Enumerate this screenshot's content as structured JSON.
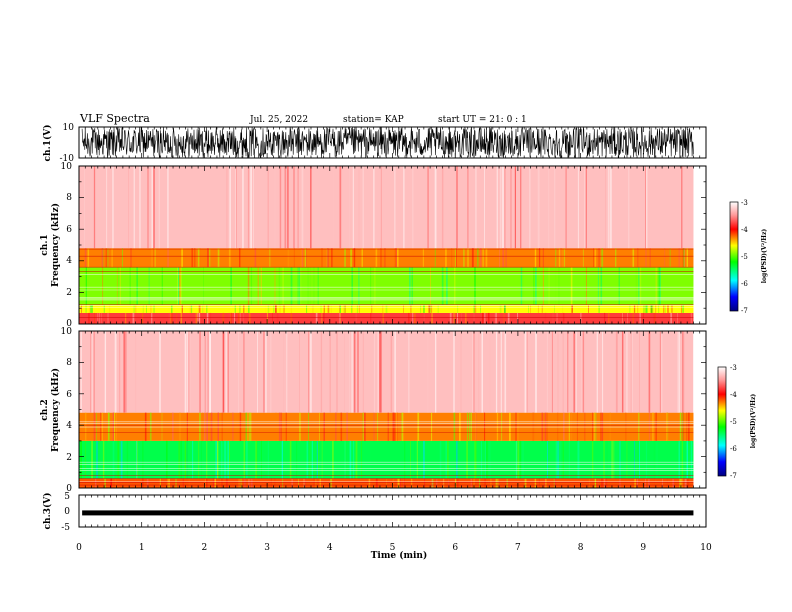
{
  "header": {
    "title": "VLF Spectra",
    "date": "Jul. 25, 2022",
    "station": "station= KAP",
    "start": "start  UT =   21: 0  : 1"
  },
  "colors": {
    "frame": "#000000",
    "spectrogram_low": "#ffffff",
    "spectrogram_mid": "#ff0000",
    "spectrogram_high": "#00ff00"
  },
  "chart_data": [
    {
      "type": "line",
      "ylabel": "ch.1(V)",
      "ylim": [
        -10,
        10
      ],
      "yticks": [
        "10",
        "-10"
      ],
      "xlim": [
        0,
        10
      ],
      "description_series": "broadband noise, approx uniform between -10 and 10"
    },
    {
      "type": "heatmap",
      "ylabel_line1": "ch.1",
      "ylabel_line2": "Frequency (kHz)",
      "ylim": [
        0,
        10
      ],
      "yticks": [
        "0",
        "2",
        "4",
        "6",
        "8",
        "10"
      ],
      "xlim": [
        0,
        9.8
      ],
      "colorbar": {
        "ticks": [
          "-3",
          "-4",
          "-5",
          "-6",
          "-7"
        ],
        "range": [
          -7,
          -3
        ],
        "label": "log(PSD)(V²/Hz)"
      },
      "bands": [
        {
          "f_lo": 0,
          "f_hi": 0.7,
          "level": -3.8
        },
        {
          "f_lo": 0.7,
          "f_hi": 1.2,
          "level": -4.6
        },
        {
          "f_lo": 1.2,
          "f_hi": 3.6,
          "level": -4.9
        },
        {
          "f_lo": 3.6,
          "f_hi": 4.8,
          "level": -4.3
        },
        {
          "f_lo": 4.8,
          "f_hi": 10,
          "level": -3.3
        }
      ]
    },
    {
      "type": "heatmap",
      "ylabel_line1": "ch.2",
      "ylabel_line2": "Frequency (kHz)",
      "ylim": [
        0,
        10
      ],
      "yticks": [
        "0",
        "2",
        "4",
        "6",
        "8",
        "10"
      ],
      "xlim": [
        0,
        9.8
      ],
      "colorbar": {
        "ticks": [
          "-3",
          "-4",
          "-5",
          "-6",
          "-7"
        ],
        "range": [
          -7,
          -3
        ],
        "label": "log(PSD)(V²/Hz)"
      },
      "bands": [
        {
          "f_lo": 0,
          "f_hi": 0.6,
          "level": -4.2
        },
        {
          "f_lo": 0.6,
          "f_hi": 3.0,
          "level": -5.4
        },
        {
          "f_lo": 3.0,
          "f_hi": 4.8,
          "level": -4.3
        },
        {
          "f_lo": 4.8,
          "f_hi": 10,
          "level": -3.3
        }
      ]
    },
    {
      "type": "line",
      "ylabel": "ch.3(V)",
      "ylim": [
        -5,
        5
      ],
      "yticks": [
        "5",
        "0",
        "-5"
      ],
      "xlim": [
        0,
        10
      ],
      "level": -0.6,
      "xlabel": "Time (min)",
      "xticks": [
        "0",
        "1",
        "2",
        "3",
        "4",
        "5",
        "6",
        "7",
        "8",
        "9",
        "10"
      ]
    }
  ]
}
